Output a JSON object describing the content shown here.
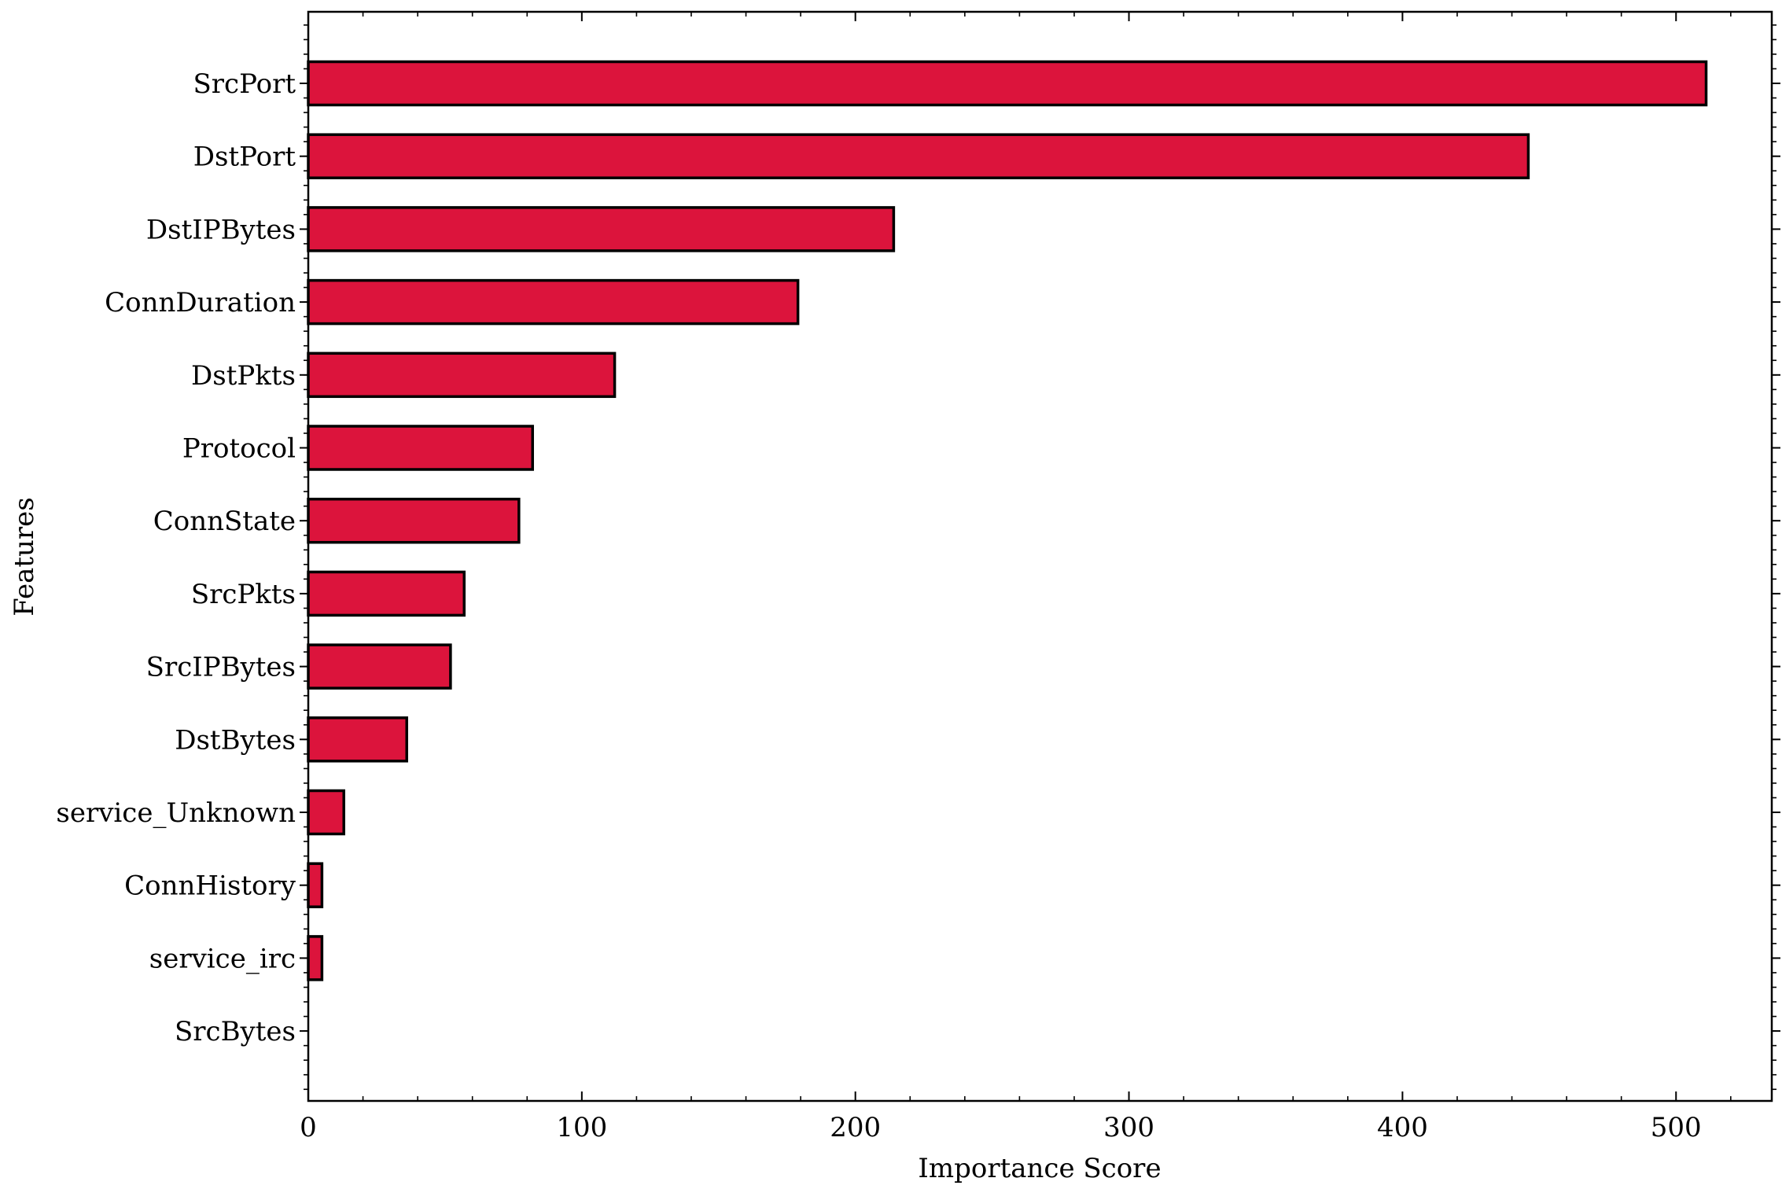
{
  "chart_data": {
    "type": "bar",
    "orientation": "horizontal",
    "title": "",
    "xlabel": "Importance Score",
    "ylabel": "Features",
    "xlim": [
      0,
      535
    ],
    "xticks": [
      0,
      100,
      200,
      300,
      400,
      500
    ],
    "xtick_labels": [
      "0",
      "100",
      "200",
      "300",
      "400",
      "500"
    ],
    "categories": [
      "SrcPort",
      "DstPort",
      "DstIPBytes",
      "ConnDuration",
      "DstPkts",
      "Protocol",
      "ConnState",
      "SrcPkts",
      "SrcIPBytes",
      "DstBytes",
      "service_Unknown",
      "ConnHistory",
      "service_irc",
      "SrcBytes"
    ],
    "values": [
      511,
      446,
      214,
      179,
      112,
      82,
      77,
      57,
      52,
      36,
      13,
      5,
      5,
      0
    ],
    "bar_color": "#dc143c",
    "edge_color": "#000000",
    "grid": false,
    "legend": "none"
  }
}
